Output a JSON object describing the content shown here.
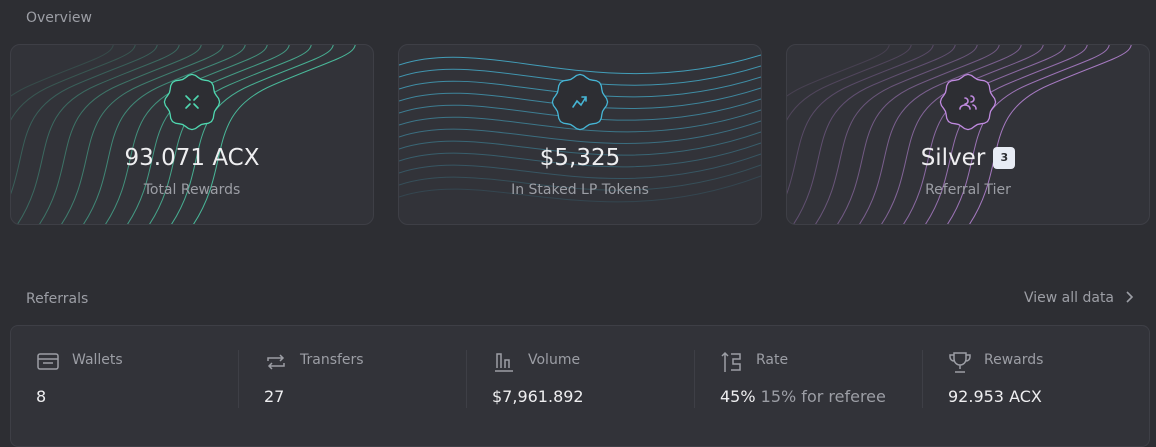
{
  "overview": {
    "title": "Overview",
    "cards": [
      {
        "value": "93.071 ACX",
        "label": "Total Rewards"
      },
      {
        "value": "$5,325",
        "label": "In Staked LP Tokens"
      },
      {
        "value": "Silver",
        "badge": "3",
        "label": "Referral Tier"
      }
    ]
  },
  "referrals": {
    "title": "Referrals",
    "link": "View all data",
    "stats": [
      {
        "label": "Wallets",
        "value": "8"
      },
      {
        "label": "Transfers",
        "value": "27"
      },
      {
        "label": "Volume",
        "value": "$7,961.892"
      },
      {
        "label": "Rate",
        "value": "45%",
        "note": "15% for referee"
      },
      {
        "label": "Rewards",
        "value": "92.953 ACX"
      }
    ]
  }
}
